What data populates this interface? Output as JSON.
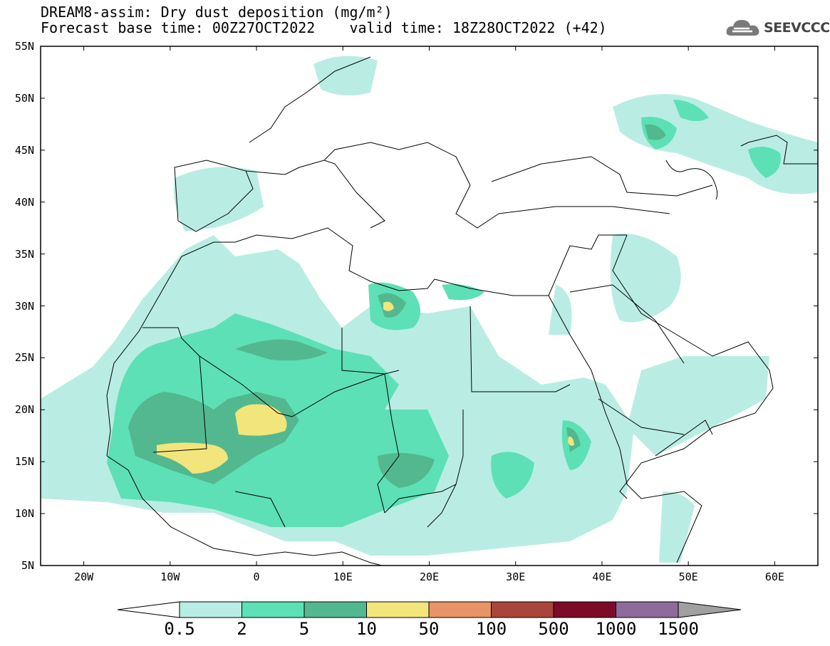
{
  "header": {
    "title_line1": "DREAM8-assim: Dry dust deposition (mg/m²)",
    "title_line2": "Forecast base time: 00Z27OCT2022    valid time: 18Z28OCT2022 (+42)",
    "logo_text": "SEEVCCC",
    "logo_icon": "cloud-icon"
  },
  "map": {
    "lat_labels": [
      "55N",
      "50N",
      "45N",
      "40N",
      "35N",
      "30N",
      "25N",
      "20N",
      "15N",
      "10N",
      "5N"
    ],
    "lon_labels": [
      "20W",
      "10W",
      "0",
      "10E",
      "20E",
      "30E",
      "40E",
      "50E",
      "60E"
    ],
    "lon_range": [
      -25,
      65
    ],
    "lat_range": [
      5,
      55
    ],
    "border_color": "#000000",
    "background": "#ffffff"
  },
  "colorbar": {
    "labels": [
      "0.5",
      "2",
      "5",
      "10",
      "50",
      "100",
      "500",
      "1000",
      "1500"
    ],
    "colors": [
      "#b9ede3",
      "#5de0b5",
      "#53b88f",
      "#f2e57c",
      "#e89466",
      "#a8463c",
      "#7c0b2a",
      "#8e6b9b"
    ],
    "under_color": "#ffffff",
    "over_color": "#a0a0a0"
  }
}
